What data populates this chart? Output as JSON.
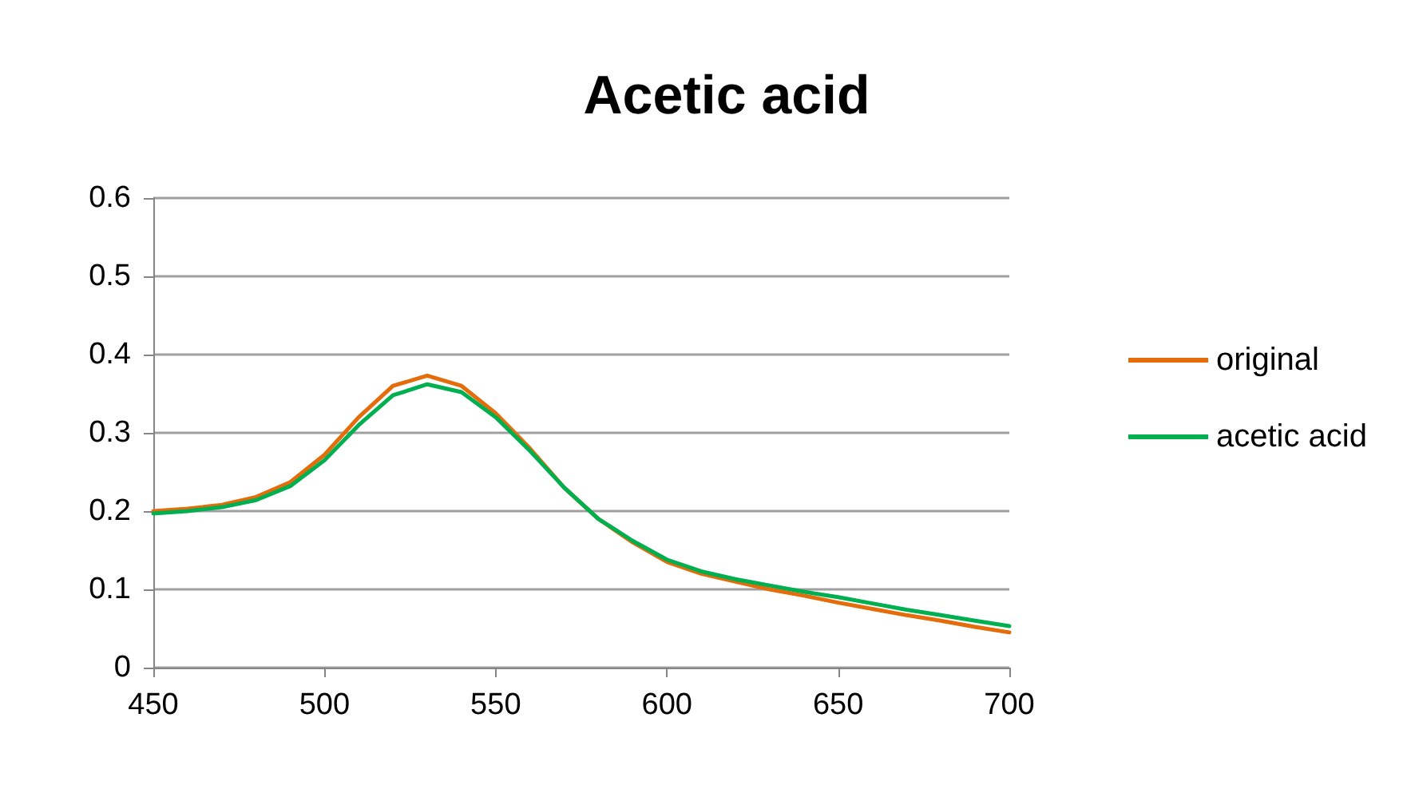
{
  "chart_data": {
    "type": "line",
    "title": "Acetic acid",
    "x": [
      450,
      460,
      470,
      480,
      490,
      500,
      510,
      520,
      530,
      540,
      550,
      560,
      570,
      580,
      590,
      600,
      610,
      620,
      630,
      640,
      650,
      660,
      670,
      680,
      690,
      700
    ],
    "series": [
      {
        "name": "original",
        "color": "#e46c0a",
        "values": [
          0.2,
          0.203,
          0.208,
          0.218,
          0.237,
          0.272,
          0.32,
          0.36,
          0.373,
          0.36,
          0.325,
          0.28,
          0.23,
          0.19,
          0.16,
          0.135,
          0.12,
          0.11,
          0.1,
          0.092,
          0.083,
          0.075,
          0.067,
          0.06,
          0.052,
          0.045
        ]
      },
      {
        "name": "acetic acid",
        "color": "#00b050",
        "values": [
          0.197,
          0.2,
          0.205,
          0.214,
          0.232,
          0.265,
          0.31,
          0.348,
          0.362,
          0.352,
          0.32,
          0.277,
          0.23,
          0.19,
          0.162,
          0.138,
          0.123,
          0.113,
          0.105,
          0.097,
          0.09,
          0.082,
          0.074,
          0.067,
          0.06,
          0.053
        ]
      }
    ],
    "xlim": [
      450,
      700
    ],
    "xticks": [
      450,
      500,
      550,
      600,
      650,
      700
    ],
    "ylim": [
      0,
      0.6
    ],
    "yticks": [
      0,
      0.1,
      0.2,
      0.3,
      0.4,
      0.5,
      0.6
    ],
    "grid": "y",
    "legend": "right",
    "marker": "none",
    "line_style": "solid"
  }
}
